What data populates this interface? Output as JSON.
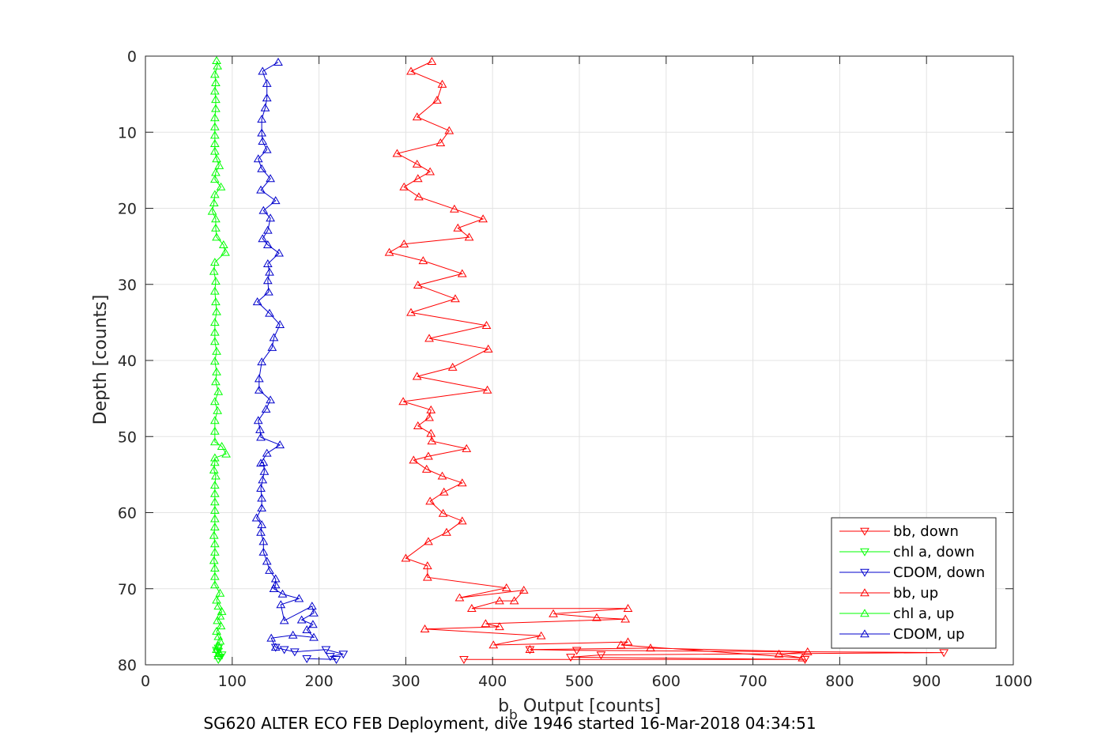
{
  "caption": "SG620 ALTER ECO FEB Deployment, dive 1946 started 16-Mar-2018 04:34:51",
  "chart_data": {
    "type": "line",
    "xlabel_main": "b",
    "xlabel_sub": "b",
    "xlabel_rest": " Output [counts]",
    "ylabel": "Depth [counts]",
    "xlim": [
      0,
      1000
    ],
    "ylim": [
      0,
      80
    ],
    "y_reversed": true,
    "grid": true,
    "legend_position": "bottom-right",
    "xticks": [
      0,
      100,
      200,
      300,
      400,
      500,
      600,
      700,
      800,
      900,
      1000
    ],
    "yticks": [
      0,
      10,
      20,
      30,
      40,
      50,
      60,
      70,
      80
    ],
    "series": [
      {
        "name": "bb, down",
        "color": "#ff0000",
        "marker": "triangle-down",
        "points": [
          [
            367,
            79.3
          ],
          [
            760,
            79.3
          ],
          [
            490,
            79
          ],
          [
            525,
            78.7
          ],
          [
            920,
            78.4
          ],
          [
            497,
            78.1
          ],
          [
            443,
            78
          ]
        ]
      },
      {
        "name": "chl a, down",
        "color": "#00ff00",
        "marker": "triangle-down",
        "points": [
          [
            84,
            79.3
          ],
          [
            86,
            79
          ],
          [
            88,
            78.7
          ],
          [
            83,
            78.4
          ],
          [
            82,
            78.1
          ],
          [
            84,
            77.8
          ]
        ]
      },
      {
        "name": "CDOM, down",
        "color": "#0000cc",
        "marker": "triangle-down",
        "points": [
          [
            186,
            79.2
          ],
          [
            220,
            79.3
          ],
          [
            213,
            78.9
          ],
          [
            228,
            78.6
          ],
          [
            208,
            78
          ],
          [
            172,
            78.3
          ],
          [
            160,
            78
          ],
          [
            150,
            77.7
          ]
        ]
      },
      {
        "name": "bb, up",
        "color": "#ff0000",
        "marker": "triangle-up",
        "points": [
          [
            443,
            78
          ],
          [
            582,
            77.8
          ],
          [
            763,
            78.3
          ],
          [
            730,
            78.6
          ],
          [
            757,
            79.1
          ],
          [
            548,
            77.4
          ],
          [
            556,
            77
          ],
          [
            401,
            77.4
          ],
          [
            456,
            76.2
          ],
          [
            322,
            75.3
          ],
          [
            408,
            75
          ],
          [
            392,
            74.6
          ],
          [
            553,
            74
          ],
          [
            520,
            73.8
          ],
          [
            470,
            73.3
          ],
          [
            556,
            72.6
          ],
          [
            376,
            72.6
          ],
          [
            408,
            71.6
          ],
          [
            425,
            71.6
          ],
          [
            436,
            70.2
          ],
          [
            362,
            71.2
          ],
          [
            416,
            69.9
          ],
          [
            325,
            68.5
          ],
          [
            325,
            67
          ],
          [
            300,
            66
          ],
          [
            326,
            63.8
          ],
          [
            347,
            62.6
          ],
          [
            365,
            61.1
          ],
          [
            343,
            60.1
          ],
          [
            328,
            58.5
          ],
          [
            344,
            57.3
          ],
          [
            365,
            56.1
          ],
          [
            342,
            55.2
          ],
          [
            324,
            54.3
          ],
          [
            309,
            53.1
          ],
          [
            326,
            52.6
          ],
          [
            370,
            51.6
          ],
          [
            330,
            50.6
          ],
          [
            329,
            49.6
          ],
          [
            314,
            48.6
          ],
          [
            327,
            47.5
          ],
          [
            329,
            46.5
          ],
          [
            297,
            45.4
          ],
          [
            394,
            43.9
          ],
          [
            313,
            42.1
          ],
          [
            354,
            40.9
          ],
          [
            395,
            38.5
          ],
          [
            327,
            37.1
          ],
          [
            393,
            35.4
          ],
          [
            306,
            33.7
          ],
          [
            357,
            31.9
          ],
          [
            314,
            30.1
          ],
          [
            365,
            28.6
          ],
          [
            320,
            26.9
          ],
          [
            281,
            25.8
          ],
          [
            298,
            24.7
          ],
          [
            373,
            23.8
          ],
          [
            360,
            22.6
          ],
          [
            389,
            21.4
          ],
          [
            356,
            20.1
          ],
          [
            315,
            18.5
          ],
          [
            298,
            17.2
          ],
          [
            314,
            16.1
          ],
          [
            328,
            15.2
          ],
          [
            313,
            14.2
          ],
          [
            290,
            12.8
          ],
          [
            340,
            11.4
          ],
          [
            350,
            9.8
          ],
          [
            313,
            8
          ],
          [
            336,
            5.8
          ],
          [
            342,
            3.7
          ],
          [
            306,
            2
          ],
          [
            330,
            0.7
          ]
        ]
      },
      {
        "name": "chl a, up",
        "color": "#00ff00",
        "marker": "triangle-up",
        "points": [
          [
            84,
            78.8
          ],
          [
            85,
            78.4
          ],
          [
            82,
            78
          ],
          [
            84,
            77.5
          ],
          [
            86,
            76.9
          ],
          [
            84,
            76.3
          ],
          [
            82,
            75.6
          ],
          [
            87,
            74.9
          ],
          [
            83,
            74.2
          ],
          [
            86,
            73.6
          ],
          [
            88,
            73
          ],
          [
            84,
            72.3
          ],
          [
            82,
            71.5
          ],
          [
            86,
            70.6
          ],
          [
            80,
            69.5
          ],
          [
            80,
            68.4
          ],
          [
            80,
            67.3
          ],
          [
            79,
            66.3
          ],
          [
            80,
            65.2
          ],
          [
            80,
            64.1
          ],
          [
            79,
            63
          ],
          [
            80,
            61.9
          ],
          [
            80,
            60.8
          ],
          [
            80,
            59.7
          ],
          [
            80,
            58.6
          ],
          [
            80,
            57.5
          ],
          [
            80,
            56.4
          ],
          [
            81,
            55.2
          ],
          [
            79,
            54.4
          ],
          [
            80,
            53.4
          ],
          [
            80,
            52.8
          ],
          [
            93,
            52.3
          ],
          [
            88,
            51.3
          ],
          [
            80,
            50.7
          ],
          [
            80,
            49.3
          ],
          [
            80,
            47.9
          ],
          [
            83,
            46.6
          ],
          [
            80,
            45.4
          ],
          [
            84,
            44.1
          ],
          [
            81,
            42.8
          ],
          [
            82,
            41.5
          ],
          [
            80,
            40.1
          ],
          [
            82,
            38.8
          ],
          [
            80,
            37.5
          ],
          [
            80,
            36.3
          ],
          [
            80,
            35
          ],
          [
            82,
            33.6
          ],
          [
            81,
            32.3
          ],
          [
            80,
            30.9
          ],
          [
            81,
            29.6
          ],
          [
            79,
            28.3
          ],
          [
            80,
            27.1
          ],
          [
            92,
            25.8
          ],
          [
            90,
            24.8
          ],
          [
            82,
            23.8
          ],
          [
            81,
            22.6
          ],
          [
            81,
            21.4
          ],
          [
            77,
            20.4
          ],
          [
            79,
            19.3
          ],
          [
            80,
            18.2
          ],
          [
            87,
            17.2
          ],
          [
            80,
            16.2
          ],
          [
            81,
            15.3
          ],
          [
            85,
            14.4
          ],
          [
            82,
            13.5
          ],
          [
            80,
            12.5
          ],
          [
            80,
            11.5
          ],
          [
            80,
            10.4
          ],
          [
            80,
            9.3
          ],
          [
            80,
            8.1
          ],
          [
            81,
            6.9
          ],
          [
            81,
            5.7
          ],
          [
            80,
            4.6
          ],
          [
            81,
            3.5
          ],
          [
            80,
            2.4
          ],
          [
            83,
            1.3
          ],
          [
            82,
            0.6
          ]
        ]
      },
      {
        "name": "CDOM, up",
        "color": "#0000cc",
        "marker": "triangle-up",
        "points": [
          [
            150,
            77.7
          ],
          [
            145,
            76.5
          ],
          [
            170,
            76.1
          ],
          [
            194,
            76.4
          ],
          [
            186,
            75.4
          ],
          [
            193,
            74.7
          ],
          [
            180,
            74.1
          ],
          [
            194,
            73.2
          ],
          [
            192,
            72.3
          ],
          [
            160,
            74.2
          ],
          [
            156,
            72.1
          ],
          [
            177,
            71.3
          ],
          [
            158,
            70.7
          ],
          [
            148,
            70
          ],
          [
            150,
            69.5
          ],
          [
            150,
            68.7
          ],
          [
            143,
            67.6
          ],
          [
            140,
            66.4
          ],
          [
            136,
            65.2
          ],
          [
            136,
            63.8
          ],
          [
            133,
            62.6
          ],
          [
            134,
            61.6
          ],
          [
            128,
            60.7
          ],
          [
            134,
            59.4
          ],
          [
            134,
            58.1
          ],
          [
            133,
            56.8
          ],
          [
            135,
            55.7
          ],
          [
            137,
            54.6
          ],
          [
            136,
            53.4
          ],
          [
            133,
            53.5
          ],
          [
            140,
            52.2
          ],
          [
            155,
            51.1
          ],
          [
            133,
            50.1
          ],
          [
            132,
            49.1
          ],
          [
            130,
            47.9
          ],
          [
            139,
            46.4
          ],
          [
            144,
            45.2
          ],
          [
            131,
            43.9
          ],
          [
            131,
            42.4
          ],
          [
            134,
            40.2
          ],
          [
            146,
            38.3
          ],
          [
            148,
            37
          ],
          [
            155,
            35.3
          ],
          [
            143,
            33.8
          ],
          [
            129,
            32.3
          ],
          [
            142,
            31
          ],
          [
            141,
            29.5
          ],
          [
            143,
            28.4
          ],
          [
            141,
            27.3
          ],
          [
            154,
            25.9
          ],
          [
            141,
            24.8
          ],
          [
            135,
            24
          ],
          [
            141,
            22.9
          ],
          [
            144,
            21.3
          ],
          [
            136,
            20.3
          ],
          [
            150,
            19
          ],
          [
            133,
            17.6
          ],
          [
            144,
            16.1
          ],
          [
            134,
            14.8
          ],
          [
            130,
            13.5
          ],
          [
            140,
            12.3
          ],
          [
            135,
            11.2
          ],
          [
            134,
            10.1
          ],
          [
            134,
            8.3
          ],
          [
            138,
            6.8
          ],
          [
            140,
            5.5
          ],
          [
            140,
            3.6
          ],
          [
            135,
            2
          ],
          [
            153,
            0.8
          ]
        ]
      }
    ]
  }
}
